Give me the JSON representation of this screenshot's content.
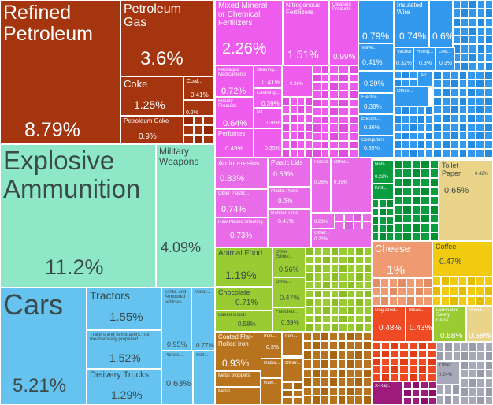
{
  "chart_data": {
    "type": "treemap",
    "title": "",
    "value_unit": "% of exports",
    "colors": {
      "petroleum": "#a5350e",
      "weapons": "#8ee8c8",
      "vehicles": "#66c2ee",
      "chemicals": "#ee5cee",
      "plastics": "#e86ce8",
      "machines": "#3399ee",
      "foodstuffs": "#99cc33",
      "metals": "#b8731f",
      "wood_paper": "#ead48a",
      "animal": "#ef9a70",
      "vegetable": "#f2cb11",
      "textiles": "#0a9d3f",
      "instruments": "#9c1b7b",
      "misc_red": "#f04a24",
      "misc_grey": "#a7a8b8"
    },
    "items": [
      {
        "label": "Refined\nPetroleum",
        "value": "8.79%",
        "group": "petroleum"
      },
      {
        "label": "Petroleum\nGas",
        "value": "3.6%",
        "group": "petroleum"
      },
      {
        "label": "Coke",
        "value": "1.25%",
        "group": "petroleum"
      },
      {
        "label": "Coal...",
        "value": "0.41%",
        "group": "petroleum"
      },
      {
        "label": "",
        "value": "0.2%",
        "group": "petroleum"
      },
      {
        "label": "Petroleum Coke",
        "value": "0.9%",
        "group": "petroleum"
      },
      {
        "label": "Explosive\nAmmunition",
        "value": "11.2%",
        "group": "weapons"
      },
      {
        "label": "Military\nWeapons",
        "value": "4.09%",
        "group": "weapons"
      },
      {
        "label": "Cars",
        "value": "5.21%",
        "group": "vehicles"
      },
      {
        "label": "Tractors",
        "value": "1.55%",
        "group": "vehicles"
      },
      {
        "label": "Trailers and semitrailers, not\nmechanically propelled...",
        "value": "1.52%",
        "group": "vehicles"
      },
      {
        "label": "Delivery Trucks",
        "value": "1.29%",
        "group": "vehicles"
      },
      {
        "label": "Tanks and\nArmoured\nvehicles",
        "value": "0.95%",
        "group": "vehicles"
      },
      {
        "label": "Motor...",
        "value": "0.77%",
        "group": "vehicles"
      },
      {
        "label": "Planes...",
        "value": "0.63%",
        "group": "vehicles"
      },
      {
        "label": "Self...",
        "value": "",
        "group": "vehicles"
      },
      {
        "label": "Mixed Mineral\nor Chemical\nFertilizers",
        "value": "2.26%",
        "group": "chemicals"
      },
      {
        "label": "Nitrogenous\nFertilizers",
        "value": "1.51%",
        "group": "chemicals"
      },
      {
        "label": "Cleaning\nProducts",
        "value": "0.99%",
        "group": "chemicals"
      },
      {
        "label": "Packaged\nMedicaments",
        "value": "0.72%",
        "group": "chemicals"
      },
      {
        "label": "Shaving...",
        "value": "0.41%",
        "group": "chemicals"
      },
      {
        "label": "",
        "value": "0.36%",
        "group": "chemicals"
      },
      {
        "label": "Beauty\nProducts",
        "value": "0.64%",
        "group": "chemicals"
      },
      {
        "label": "Cleaning...",
        "value": "0.39%",
        "group": "chemicals"
      },
      {
        "label": "Nit...",
        "value": "0.38%",
        "group": "chemicals"
      },
      {
        "label": "Perfumes",
        "value": "0.49%",
        "group": "chemicals"
      },
      {
        "label": "",
        "value": "0.35%",
        "group": "chemicals"
      },
      {
        "label": "Amino-resins",
        "value": "0.83%",
        "group": "plastics"
      },
      {
        "label": "Plastic Lids",
        "value": "0.53%",
        "group": "plastics"
      },
      {
        "label": "Plastic...",
        "value": "0.26%",
        "group": "plastics"
      },
      {
        "label": "Other...",
        "value": "0.35%",
        "group": "plastics"
      },
      {
        "label": "Other Plastic...",
        "value": "0.74%",
        "group": "plastics"
      },
      {
        "label": "Plastic Pipes",
        "value": "0.5%",
        "group": "plastics"
      },
      {
        "label": "",
        "value": "0.23%",
        "group": "plastics"
      },
      {
        "label": "Raw Plastic Sheeting",
        "value": "0.73%",
        "group": "plastics"
      },
      {
        "label": "Rubber Tires",
        "value": "0.41%",
        "group": "plastics"
      },
      {
        "label": "Other...",
        "value": "0.22%",
        "group": "plastics"
      },
      {
        "label": "",
        "value": "0.79%",
        "group": "machines"
      },
      {
        "label": "Insulated\nWire",
        "value": "0.74%",
        "group": "machines"
      },
      {
        "label": "",
        "value": "0.6%",
        "group": "machines"
      },
      {
        "label": "Valve...",
        "value": "0.41%",
        "group": "machines"
      },
      {
        "label": "Vacuum...",
        "value": "0.32%",
        "group": "machines"
      },
      {
        "label": "Refrig...",
        "value": "0.3%",
        "group": "machines"
      },
      {
        "label": "Low...",
        "value": "0.3%",
        "group": "machines"
      },
      {
        "label": "",
        "value": "0.39%",
        "group": "machines"
      },
      {
        "label": "Electric...",
        "value": "0.38%",
        "group": "machines"
      },
      {
        "label": "Electric...",
        "value": "0.36%",
        "group": "machines"
      },
      {
        "label": "Computers",
        "value": "0.35%",
        "group": "machines"
      },
      {
        "label": "Office...",
        "value": "",
        "group": "machines"
      },
      {
        "label": "Air...",
        "value": "",
        "group": "machines"
      },
      {
        "label": "Animal Food",
        "value": "1.19%",
        "group": "foodstuffs"
      },
      {
        "label": "Other\nEdible...",
        "value": "0.56%",
        "group": "foodstuffs"
      },
      {
        "label": "Chocolate",
        "value": "0.71%",
        "group": "foodstuffs"
      },
      {
        "label": "Other...",
        "value": "0.47%",
        "group": "foodstuffs"
      },
      {
        "label": "Baked Goods",
        "value": "0.58%",
        "group": "foodstuffs"
      },
      {
        "label": "Flavored...",
        "value": "0.39%",
        "group": "foodstuffs"
      },
      {
        "label": "Coated Flat-\nRolled Iron",
        "value": "0.93%",
        "group": "metals"
      },
      {
        "label": "Iron...",
        "value": "0.3%",
        "group": "metals"
      },
      {
        "label": "Iron...",
        "value": "",
        "group": "metals"
      },
      {
        "label": "Other...",
        "value": "",
        "group": "metals"
      },
      {
        "label": "Metal Stoppers",
        "value": "",
        "group": "metals"
      },
      {
        "label": "Razor...",
        "value": "",
        "group": "metals"
      },
      {
        "label": "Metal...",
        "value": "",
        "group": "metals"
      },
      {
        "label": "Raw...",
        "value": "",
        "group": "metals"
      },
      {
        "label": "Non-...",
        "value": "0.28%",
        "group": "textiles"
      },
      {
        "label": "Knit...",
        "value": "",
        "group": "textiles"
      },
      {
        "label": "Toilet\nPaper",
        "value": "0.65%",
        "group": "wood_paper"
      },
      {
        "label": "",
        "value": "0.42%",
        "group": "wood_paper"
      },
      {
        "label": "Cheese",
        "value": "1%",
        "group": "animal"
      },
      {
        "label": "Coffee",
        "value": "0.47%",
        "group": "vegetable"
      },
      {
        "label": "Unglazed...",
        "value": "0.48%",
        "group": "misc_red"
      },
      {
        "label": "Bleac...",
        "value": "0.43%",
        "group": "misc_red"
      },
      {
        "label": "Laminated\nSafety\nGlass",
        "value": "0.58%",
        "group": "foodstuffs"
      },
      {
        "label": "Wood...",
        "value": "0.58%",
        "group": "wood_paper"
      },
      {
        "label": "Other...",
        "value": "0.24%",
        "group": "misc_grey"
      },
      {
        "label": "X-Ray...",
        "value": "",
        "group": "instruments"
      }
    ]
  }
}
